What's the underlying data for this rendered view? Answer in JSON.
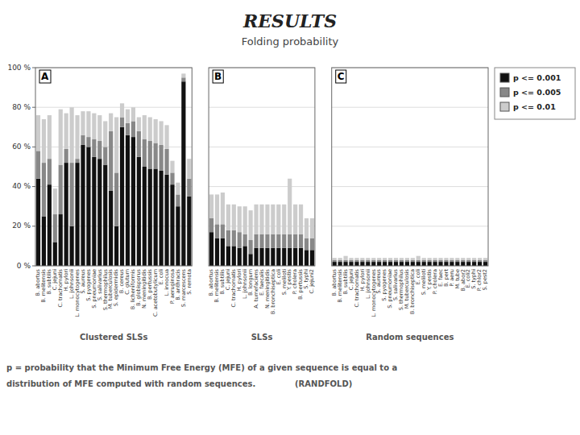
{
  "title": "RESULTS",
  "subtitle": "Folding probability",
  "annotations": [
    "p = probability that the Minimum Free Energy (MFE) of a given sequence is equal to a",
    "distribution of MFE computed with random sequences.              (RANDFOLD)"
  ],
  "chart_data": [
    {
      "type": "bar",
      "stacked": true,
      "title": "A",
      "subtitle": "Clustered SLSs",
      "grid": true,
      "legend": "upper right",
      "categories": [
        "B. abortus",
        "B. melitensis",
        "B. subtilis",
        "C. jejuni",
        "C. trachomatis",
        "H. pylori",
        "L. johnsonii",
        "L. monocytogenes",
        "S. aureus",
        "S. pyogenes",
        "S. pneumoniae",
        "S. salivarius",
        "S. thermophilus",
        "M. tuberculosis",
        "S. epidermidis",
        "B. cereus",
        "C. glutum",
        "B. licheniformis",
        "B. globisporus",
        "N. meningitidis",
        "B. pertussis",
        "C. acetobutylicum",
        "E. coli",
        "L. innocua",
        "P. aeruginosa",
        "B. anthracis",
        "S. marcescens",
        "S. remota"
      ],
      "series": [
        {
          "name": "p <= 0.001",
          "color": "#111111",
          "values": [
            44,
            25,
            41,
            12,
            26,
            52,
            20,
            52,
            61,
            60,
            55,
            54,
            51,
            38,
            20,
            70,
            66,
            65,
            55,
            50,
            49,
            49,
            48,
            46,
            41,
            30,
            93,
            35
          ]
        },
        {
          "name": "p <= 0.005",
          "color": "#888888",
          "values": [
            14,
            27,
            13,
            14,
            25,
            7,
            32,
            2,
            5,
            5,
            9,
            9,
            9,
            30,
            27,
            5,
            6,
            8,
            13,
            14,
            14,
            13,
            13,
            13,
            6,
            6,
            2,
            9
          ]
        },
        {
          "name": "p <= 0.01",
          "color": "#cccccc",
          "values": [
            18,
            22,
            22,
            13,
            28,
            18,
            28,
            22,
            12,
            13,
            13,
            13,
            13,
            9,
            28,
            7,
            7,
            7,
            7,
            12,
            12,
            12,
            12,
            12,
            6,
            6,
            2,
            10
          ]
        }
      ],
      "ylim": [
        0,
        100
      ],
      "yticks": [
        {
          "value": 0,
          "label": "0 %"
        },
        {
          "value": 20,
          "label": "20 %"
        },
        {
          "value": 40,
          "label": "40 %"
        },
        {
          "value": 60,
          "label": "60 %"
        },
        {
          "value": 80,
          "label": "80 %"
        },
        {
          "value": 100,
          "label": "100 %"
        }
      ]
    },
    {
      "type": "bar",
      "stacked": true,
      "title": "B",
      "subtitle": "SLSs",
      "grid": true,
      "tick_labels": "x",
      "categories": [
        "B. abortus",
        "B. melitensis",
        "B. subtilis",
        "C. jejuni",
        "C. trachomatis",
        "H. pylori",
        "L. johnsonii",
        "B. longum",
        "A. tumefaciens",
        "E. faecalis",
        "N. meningitidis",
        "B. bronchiseptica",
        "E. coli",
        "S. meliloti",
        "Y. pestis",
        "P. cholera",
        "B. pertussis",
        "S. typhi",
        "C. jejuni2"
      ],
      "series": [
        {
          "name": "p <= 0.001",
          "color": "#111111",
          "values": [
            17,
            14,
            14,
            10,
            10,
            9,
            10,
            6,
            9,
            9,
            9,
            9,
            9,
            9,
            9,
            9,
            9,
            8,
            8
          ]
        },
        {
          "name": "p <= 0.005",
          "color": "#888888",
          "values": [
            7,
            7,
            7,
            8,
            8,
            8,
            6,
            7,
            7,
            7,
            7,
            7,
            7,
            7,
            7,
            7,
            7,
            6,
            6
          ]
        },
        {
          "name": "p <= 0.01",
          "color": "#cccccc",
          "values": [
            12,
            15,
            16,
            13,
            13,
            13,
            14,
            15,
            15,
            15,
            15,
            15,
            15,
            15,
            28,
            15,
            15,
            10,
            10
          ]
        }
      ],
      "ylim": [
        0,
        100
      ],
      "yticks": [
        0,
        20,
        40,
        60,
        80,
        100
      ]
    },
    {
      "type": "bar",
      "stacked": true,
      "title": "C",
      "subtitle": "Random sequences",
      "grid": true,
      "tick_labels": "x",
      "categories": [
        "B. abortus",
        "B. melitensis",
        "B. subtilis",
        "C. jejuni",
        "C. trachomatis",
        "H. pylori",
        "L. johnsonii",
        "L. monocytogenes",
        "S. aureus",
        "S. pyogenes",
        "S. pneumoniae",
        "S. salivarius",
        "S. thermophilus",
        "M. tuberculosis",
        "B. bronchiseptica",
        "E. coli",
        "S. meliloti",
        "Y. pestis",
        "P. cholera",
        "E. faec",
        "B. pert",
        "P. aeru",
        "M. tube",
        "B. abor2",
        "E. coli2",
        "S. typhi",
        "P. chlor2",
        "S. pest2"
      ],
      "series": [
        {
          "name": "p <= 0.001",
          "color": "#111111",
          "values": [
            2,
            2,
            2,
            2,
            2,
            2,
            2,
            2,
            2,
            2,
            2,
            2,
            2,
            2,
            2,
            2,
            2,
            2,
            2,
            2,
            2,
            2,
            2,
            2,
            2,
            2,
            2,
            2
          ]
        },
        {
          "name": "p <= 0.005",
          "color": "#888888",
          "values": [
            1,
            1,
            1,
            1,
            1,
            1,
            1,
            1,
            1,
            1,
            1,
            1,
            1,
            1,
            1,
            1,
            1,
            1,
            1,
            1,
            1,
            1,
            1,
            1,
            1,
            1,
            1,
            1
          ]
        },
        {
          "name": "p <= 0.01",
          "color": "#cccccc",
          "values": [
            1,
            1,
            2,
            1,
            1,
            1,
            1,
            1,
            1,
            1,
            1,
            1,
            1,
            1,
            1,
            2,
            1,
            1,
            1,
            1,
            1,
            1,
            1,
            1,
            1,
            1,
            1,
            1
          ]
        }
      ],
      "ylim": [
        0,
        100
      ],
      "yticks": [
        0,
        20,
        40,
        60,
        80,
        100
      ]
    }
  ]
}
